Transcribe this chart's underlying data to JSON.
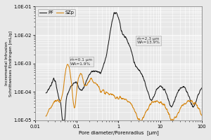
{
  "title": "",
  "xlabel": "Pore diameter/Porenradius  [µm]",
  "ylabel": "Incremental Intrusion\nSchrittweises Eindringen [mL/g]",
  "xlim": [
    0.01,
    100
  ],
  "ylim": [
    1e-05,
    0.1
  ],
  "legend_labels": [
    "PF",
    "SZp"
  ],
  "line_colors": [
    "#1a1a1a",
    "#d4820a"
  ],
  "annotation1_text": "ḿ=0.1 µm\nWA=1.9%",
  "annotation2_text": "ḿ=2.3 µm\nWA=13.9%",
  "bg_color": "#e8e8e8",
  "plot_bg_color": "#e8e8e8",
  "grid_color": "#ffffff",
  "ytick_labels": [
    "1.0E-05",
    "1.0E-04",
    "1.0E-03",
    "1.0E-02",
    "1.0E-01"
  ],
  "xtick_labels": [
    "0.01",
    "0.1",
    "1",
    "10",
    "100"
  ]
}
